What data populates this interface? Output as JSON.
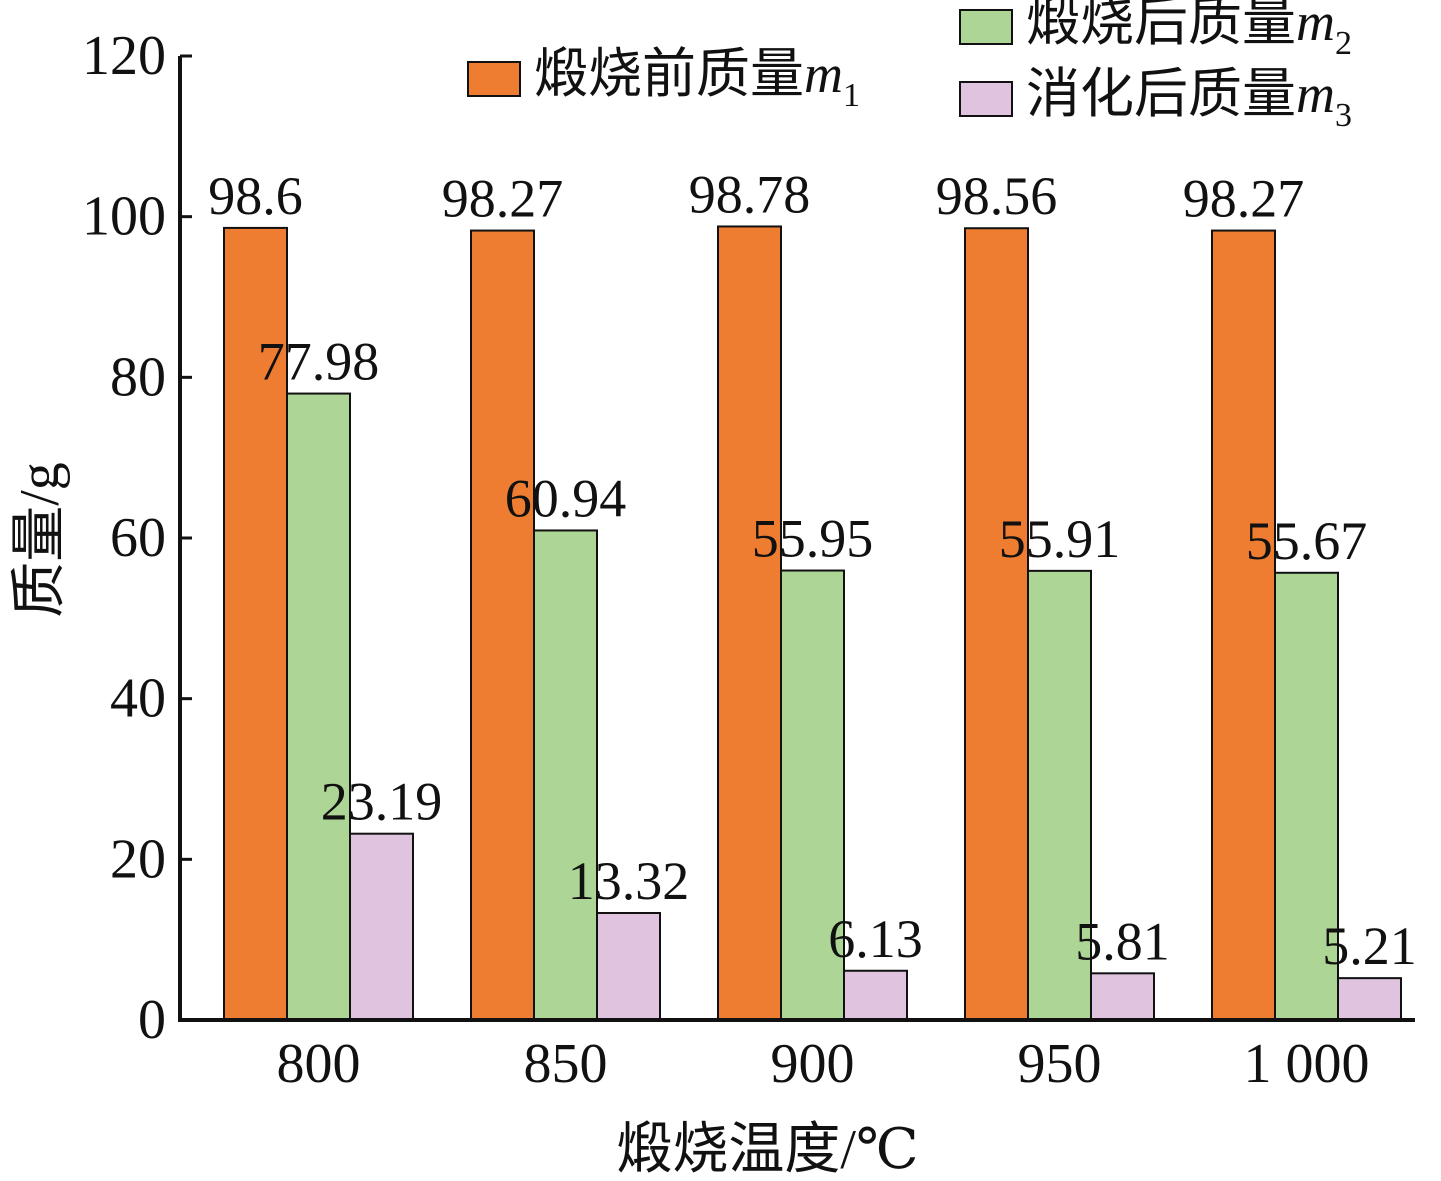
{
  "chart_data": {
    "type": "bar",
    "xlabel": "煅烧温度/℃",
    "ylabel": "质量/g",
    "ylim": [
      0,
      120
    ],
    "yticks": [
      0,
      20,
      40,
      60,
      80,
      100,
      120
    ],
    "categories": [
      "800",
      "850",
      "900",
      "950",
      "1 000"
    ],
    "legend_position": "top-right",
    "series": [
      {
        "name": "煅烧前质量",
        "var": "m",
        "sub": "1",
        "color": "#ef7d31",
        "values": [
          98.6,
          98.27,
          98.78,
          98.56,
          98.27
        ],
        "labels": [
          "98.6",
          "98.27",
          "98.78",
          "98.56",
          "98.27"
        ]
      },
      {
        "name": "煅烧后质量",
        "var": "m",
        "sub": "2",
        "color": "#add595",
        "values": [
          77.98,
          60.94,
          55.95,
          55.91,
          55.67
        ],
        "labels": [
          "77.98",
          "60.94",
          "55.95",
          "55.91",
          "55.67"
        ]
      },
      {
        "name": "消化后质量",
        "var": "m",
        "sub": "3",
        "color": "#e0c4df",
        "values": [
          23.19,
          13.32,
          6.13,
          5.81,
          5.21
        ],
        "labels": [
          "23.19",
          "13.32",
          "6.13",
          "5.81",
          "5.21"
        ]
      }
    ]
  }
}
